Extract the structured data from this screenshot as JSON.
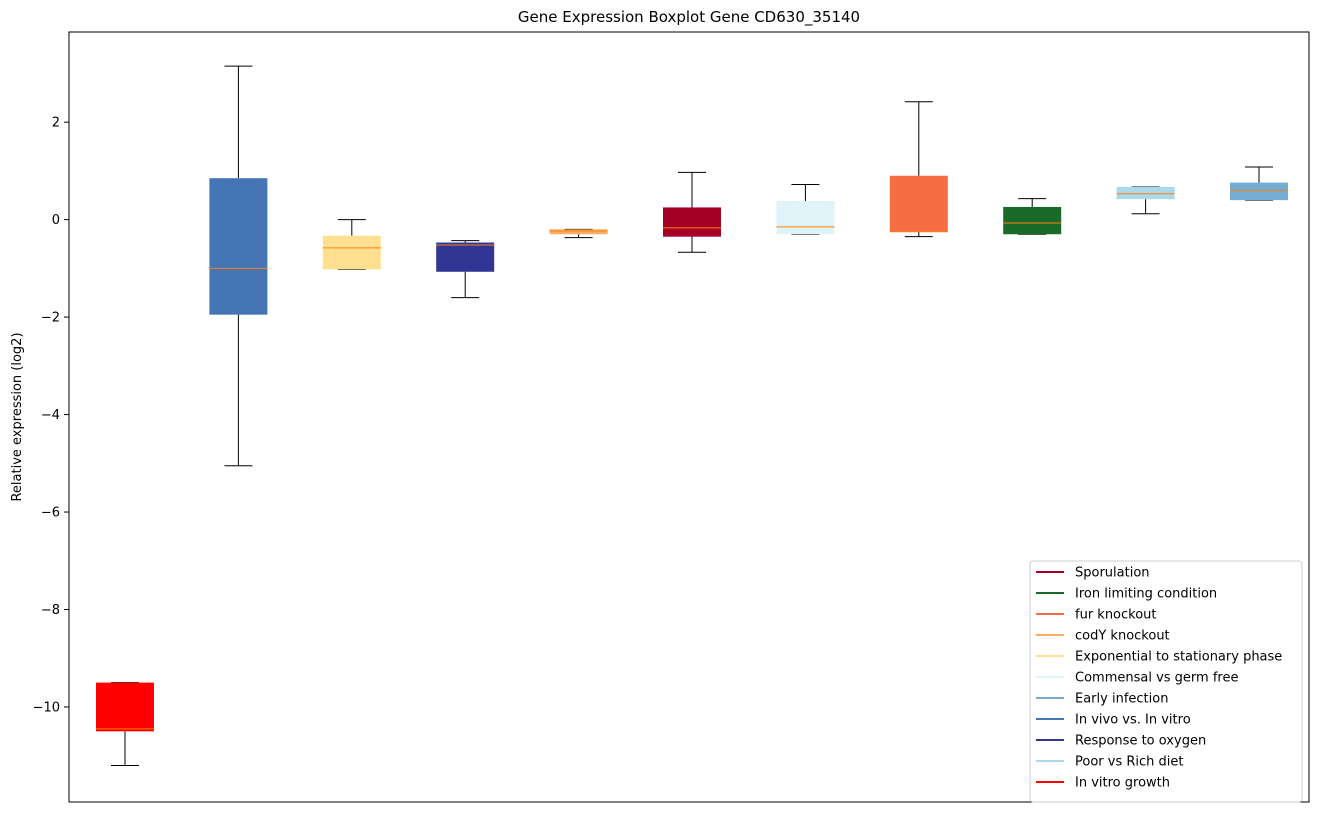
{
  "chart_data": {
    "type": "boxplot",
    "title": "Gene Expression Boxplot Gene CD630_35140",
    "xlabel": "",
    "ylabel": "Relative expression (log2)",
    "ylim": [
      -11.95,
      3.85
    ],
    "yticks": [
      2,
      0,
      -2,
      -4,
      -6,
      -8,
      -10
    ],
    "ytick_labels": [
      "2",
      "0",
      "−2",
      "−4",
      "−6",
      "−8",
      "−10"
    ],
    "grid": false,
    "legend_position": "bottom-right",
    "series": [
      {
        "name": "In vitro growth",
        "color": "#ff0000",
        "whisker_low": -11.2,
        "q1": -10.5,
        "median": -10.45,
        "q3": -9.5,
        "whisker_high": -9.5
      },
      {
        "name": "In vivo vs. In vitro",
        "color": "#4575b4",
        "whisker_low": -5.05,
        "q1": -1.95,
        "median": -1.0,
        "q3": 0.85,
        "whisker_high": 3.15
      },
      {
        "name": "Exponential to stationary phase",
        "color": "#fee090",
        "whisker_low": -1.02,
        "q1": -1.02,
        "median": -0.58,
        "q3": -0.33,
        "whisker_high": 0.0
      },
      {
        "name": "Response to oxygen",
        "color": "#313695",
        "whisker_low": -1.6,
        "q1": -1.07,
        "median": -0.52,
        "q3": -0.47,
        "whisker_high": -0.43
      },
      {
        "name": "codY knockout",
        "color": "#fdae61",
        "whisker_low": -0.37,
        "q1": -0.3,
        "median": -0.23,
        "q3": -0.2,
        "whisker_high": -0.2
      },
      {
        "name": "Sporulation",
        "color": "#a50026",
        "whisker_low": -0.67,
        "q1": -0.35,
        "median": -0.17,
        "q3": 0.25,
        "whisker_high": 0.97
      },
      {
        "name": "Commensal vs germ free",
        "color": "#e0f3f8",
        "whisker_low": -0.3,
        "q1": -0.3,
        "median": -0.15,
        "q3": 0.38,
        "whisker_high": 0.72
      },
      {
        "name": "fur knockout",
        "color": "#f46d43",
        "whisker_low": -0.35,
        "q1": -0.25,
        "median": -0.25,
        "q3": 0.9,
        "whisker_high": 2.42
      },
      {
        "name": "Iron limiting condition",
        "color": "#1a6b2a",
        "whisker_low": -0.3,
        "q1": -0.3,
        "median": -0.07,
        "q3": 0.26,
        "whisker_high": 0.43
      },
      {
        "name": "Poor vs Rich diet",
        "color": "#abd9e9",
        "whisker_low": 0.12,
        "q1": 0.42,
        "median": 0.53,
        "q3": 0.67,
        "whisker_high": 0.67
      },
      {
        "name": "Early infection",
        "color": "#74add1",
        "whisker_low": 0.4,
        "q1": 0.4,
        "median": 0.6,
        "q3": 0.76,
        "whisker_high": 1.08
      }
    ],
    "legend": [
      {
        "label": "Sporulation",
        "color": "#a50026"
      },
      {
        "label": "Iron limiting condition",
        "color": "#1a6b2a"
      },
      {
        "label": "fur knockout",
        "color": "#f46d43"
      },
      {
        "label": "codY knockout",
        "color": "#fdae61"
      },
      {
        "label": "Exponential to stationary phase",
        "color": "#fee090"
      },
      {
        "label": "Commensal vs germ free",
        "color": "#e0f3f8"
      },
      {
        "label": "Early infection",
        "color": "#74add1"
      },
      {
        "label": "In vivo vs. In vitro",
        "color": "#4575b4"
      },
      {
        "label": "Response to oxygen",
        "color": "#313695"
      },
      {
        "label": "Poor vs Rich diet",
        "color": "#abd9e9"
      },
      {
        "label": "In vitro growth",
        "color": "#ff0000"
      }
    ],
    "median_color": "#ff7f0e",
    "whisker_color": "#000000"
  }
}
